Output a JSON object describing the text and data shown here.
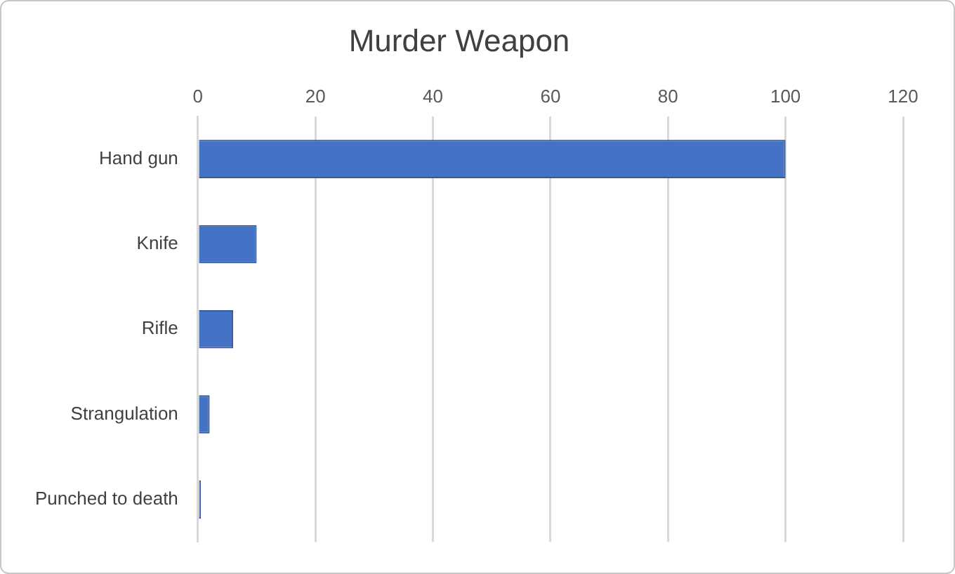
{
  "chart_data": {
    "type": "bar",
    "title": "Murder Weapon",
    "orientation": "horizontal",
    "categories": [
      "Hand gun",
      "Knife",
      "Rifle",
      "Strangulation",
      "Punched to death"
    ],
    "values": [
      100,
      10,
      6,
      2,
      0.5
    ],
    "color": "#4472c4",
    "xlim": [
      0,
      120
    ],
    "xticks": [
      0,
      20,
      40,
      60,
      80,
      100,
      120
    ],
    "grid": "x",
    "legend": false
  }
}
